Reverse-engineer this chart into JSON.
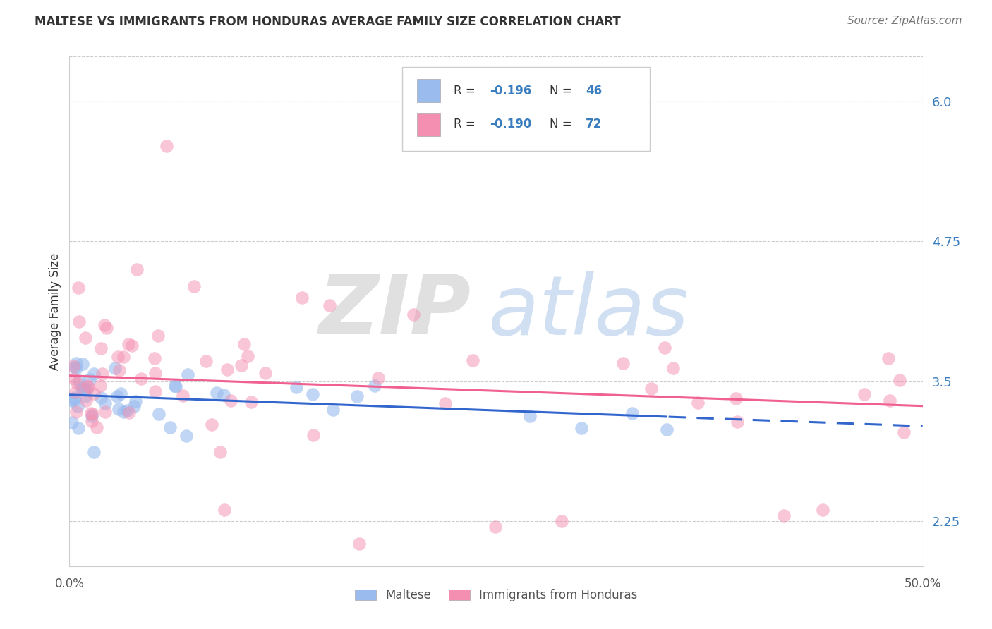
{
  "title": "MALTESE VS IMMIGRANTS FROM HONDURAS AVERAGE FAMILY SIZE CORRELATION CHART",
  "source": "Source: ZipAtlas.com",
  "ylabel": "Average Family Size",
  "yticks_right": [
    2.25,
    3.5,
    4.75,
    6.0
  ],
  "xlim": [
    0.0,
    0.5
  ],
  "ylim": [
    1.85,
    6.4
  ],
  "maltese_color": "#99bbee",
  "honduras_color": "#f48fb1",
  "maltese_line_color": "#3366cc",
  "honduras_line_color": "#f06090",
  "blue_text_color": "#3a7ebf",
  "text_color": "#333333",
  "source_color": "#777777",
  "grid_color": "#cccccc",
  "title_fontsize": 12,
  "source_fontsize": 11,
  "axis_fontsize": 12,
  "legend_text_color": "#333333"
}
